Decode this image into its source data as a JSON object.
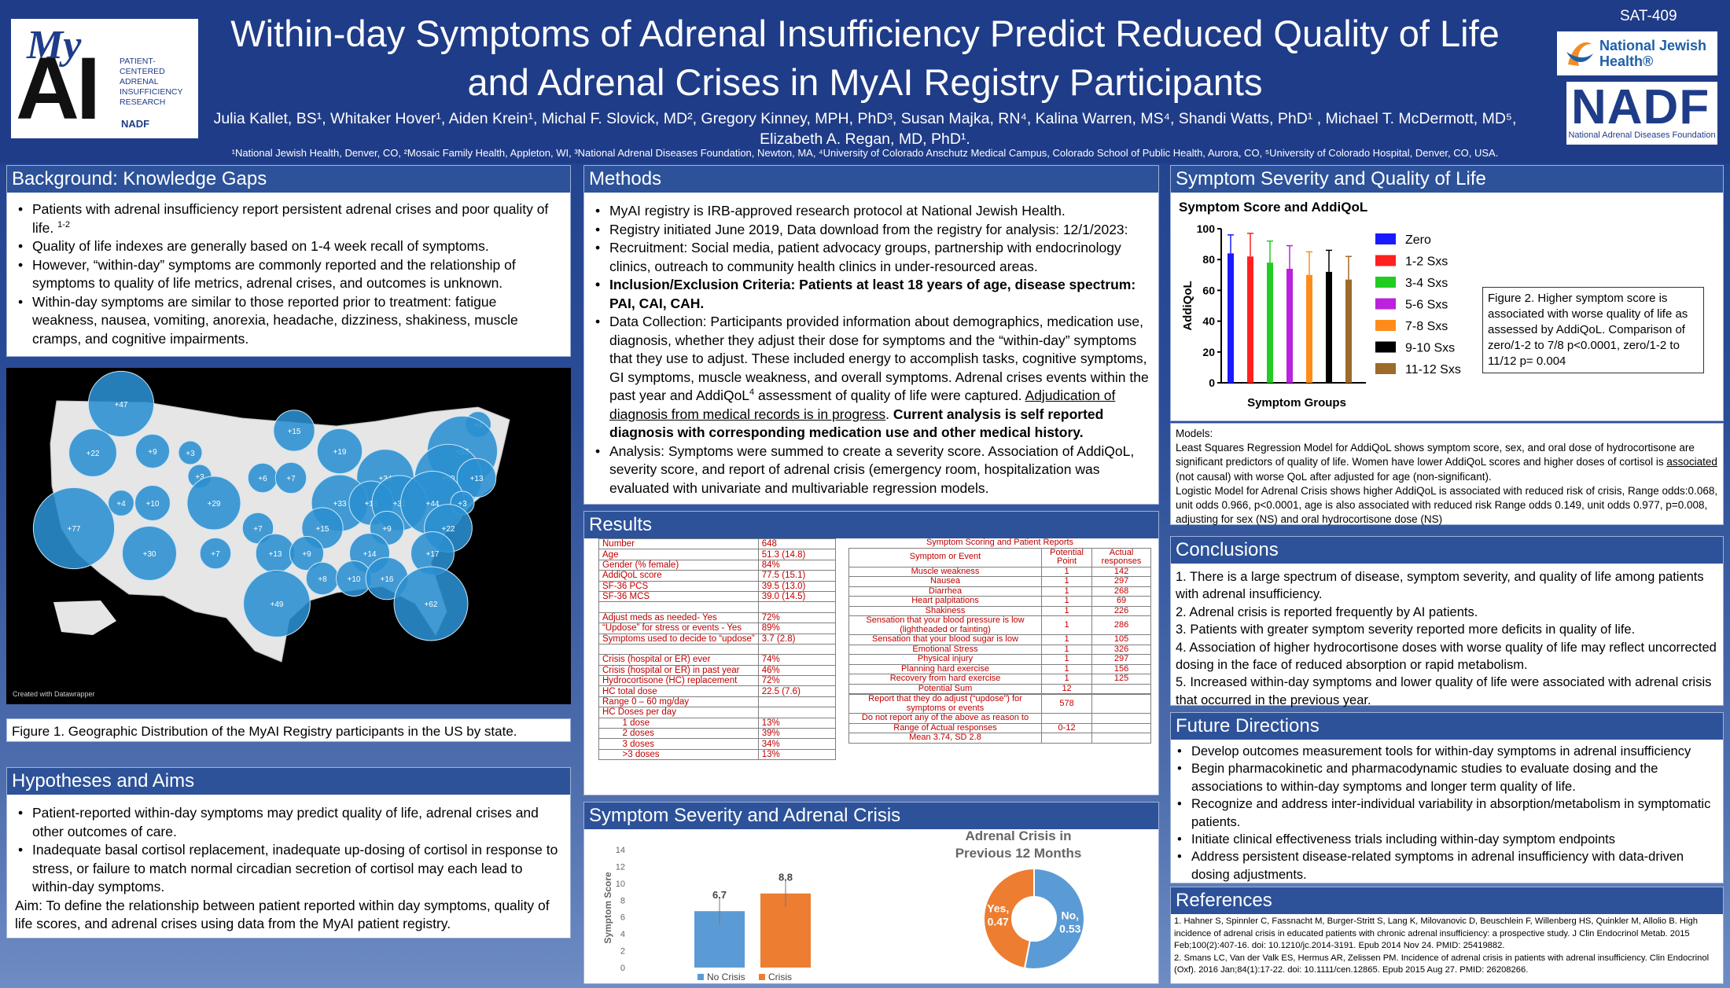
{
  "header": {
    "title": "Within-day Symptoms of Adrenal Insufficiency Predict Reduced Quality of Life and Adrenal Crises in MyAI Registry Participants",
    "authors": "Julia Kallet, BS¹, Whitaker Hover¹, Aiden Krein¹, Michal F. Slovick, MD², Gregory Kinney, MPH, PhD³, Susan Majka, RN⁴, Kalina Warren, MS⁴, Shandi Watts, PhD¹ , Michael T. McDermott, MD⁵, Elizabeth A. Regan, MD, PhD¹.",
    "affiliations": "¹National Jewish Health, Denver, CO, ²Mosaic Family Health, Appleton, WI, ³National Adrenal Diseases Foundation, Newton, MA, ⁴University of Colorado Anschutz Medical Campus, Colorado School of Public Health, Aurora, CO, ⁵University of Colorado Hospital, Denver, CO, USA.",
    "code": "SAT-409",
    "logo_myai": {
      "my": "My",
      "ai": "AI",
      "text": [
        "PATIENT-",
        "CENTERED",
        "ADRENAL",
        "INSUFFICIENCY",
        "RESEARCH"
      ],
      "nadf": "NADF"
    },
    "logo_njh": [
      "National Jewish",
      "Health®"
    ],
    "logo_nadf": {
      "big": "NADF",
      "small": "National Adrenal Diseases Foundation"
    }
  },
  "background": {
    "title": "Background: Knowledge Gaps",
    "b1": "Patients with adrenal insufficiency report persistent adrenal crises and poor quality of life.",
    "b1sup": "1-2",
    "b2": "Quality of life indexes are generally based on 1-4 week recall of symptoms.",
    "b3": "However, “within-day” symptoms are commonly reported and the relationship of symptoms to quality of life metrics, adrenal crises, and outcomes is unknown.",
    "b4": "Within-day symptoms are similar to those reported prior to treatment: fatigue weakness, nausea, vomiting, anorexia, headache, dizziness, shakiness, muscle cramps, and cognitive impairments."
  },
  "map": {
    "credit": "Created with Datawrapper",
    "caption": "Figure 1. Geographic Distribution of the MyAI Registry participants in the US by state.",
    "bubbles": [
      {
        "label": "+47",
        "value": 47
      },
      {
        "label": "+22",
        "value": 22
      },
      {
        "label": "+9",
        "value": 9
      },
      {
        "label": "+15",
        "value": 15
      },
      {
        "label": "+3",
        "value": 3
      },
      {
        "label": "+19",
        "value": 19
      },
      {
        "label": "+4",
        "value": 4
      },
      {
        "label": "+55",
        "value": 55
      },
      {
        "label": "+3",
        "value": 3
      },
      {
        "label": "+6",
        "value": 6
      },
      {
        "label": "+7",
        "value": 7
      },
      {
        "label": "+34",
        "value": 34
      },
      {
        "label": "+50",
        "value": 50
      },
      {
        "label": "+13",
        "value": 13
      },
      {
        "label": "+4",
        "value": 4
      },
      {
        "label": "+10",
        "value": 10
      },
      {
        "label": "+29",
        "value": 29
      },
      {
        "label": "+33",
        "value": 33
      },
      {
        "label": "+18",
        "value": 18
      },
      {
        "label": "+31",
        "value": 31
      },
      {
        "label": "+44",
        "value": 44
      },
      {
        "label": "+3",
        "value": 3
      },
      {
        "label": "+77",
        "value": 77
      },
      {
        "label": "+7",
        "value": 7
      },
      {
        "label": "+15",
        "value": 15
      },
      {
        "label": "+9",
        "value": 9
      },
      {
        "label": "+22",
        "value": 22
      },
      {
        "label": "+30",
        "value": 30
      },
      {
        "label": "+7",
        "value": 7
      },
      {
        "label": "+13",
        "value": 13
      },
      {
        "label": "+9",
        "value": 9
      },
      {
        "label": "+14",
        "value": 14
      },
      {
        "label": "+17",
        "value": 17
      },
      {
        "label": "+8",
        "value": 8
      },
      {
        "label": "+10",
        "value": 10
      },
      {
        "label": "+16",
        "value": 16
      },
      {
        "label": "+49",
        "value": 49
      },
      {
        "label": "+62",
        "value": 62
      }
    ]
  },
  "hypotheses": {
    "title": "Hypotheses and Aims",
    "b1": "Patient-reported within-day symptoms may predict quality of life, adrenal crises and other outcomes of care.",
    "b2": "Inadequate basal cortisol replacement, inadequate up-dosing of cortisol in response to stress, or failure to match normal circadian secretion of cortisol may each lead to within-day symptoms.",
    "aim": "Aim: To define the relationship between patient reported within day symptoms, quality of life scores, and adrenal crises using data from the MyAI patient registry."
  },
  "methods": {
    "title": "Methods",
    "b1": "MyAI registry is IRB-approved research protocol at National Jewish Health.",
    "b2": "Registry initiated June 2019, Data download from the registry for analysis: 12/1/2023:",
    "b3": "Recruitment: Social media, patient advocacy groups, partnership with endocrinology clinics, outreach to community health clinics in under-resourced areas.",
    "b4": "Inclusion/Exclusion Criteria: Patients at least 18 years of age, disease spectrum: PAI, CAI, CAH.",
    "b5a": "Data Collection: Participants provided information about demographics, medication use, diagnosis, whether they adjust their dose for symptoms and the “within-day” symptoms that they use to adjust. These included energy to accomplish tasks, cognitive symptoms, GI symptoms, muscle weakness, and overall symptoms. Adrenal crises events within the past year and AddiQoL",
    "b5sup": "4",
    "b5b": " assessment of quality of life were captured.  ",
    "b5u": "Adjudication of diagnosis from  medical records is in progress",
    "b5c": ". ",
    "b5d": "Current analysis is self reported diagnosis with corresponding medication use and other medical history.",
    "b6": "Analysis: Symptoms were summed to create a severity score. Association of AddiQoL, severity score, and report of adrenal crisis (emergency room, hospitalization was evaluated with univariate and multivariable regression models."
  },
  "results": {
    "title": "Results",
    "demo": [
      [
        "Number",
        "648"
      ],
      [
        "Age",
        "51.3 (14.8)"
      ],
      [
        "Gender (% female)",
        "84%"
      ],
      [
        "AddiQoL score",
        "77.5 (15.1)"
      ],
      [
        "SF-36 PCS",
        "39.5 (13.0)"
      ],
      [
        "SF-36 MCS",
        "39.0 (14.5)"
      ],
      [
        "",
        ""
      ],
      [
        "Adjust meds as needed- Yes",
        "72%"
      ],
      [
        "“Updose” for stress or events - Yes",
        "89%"
      ],
      [
        "Symptoms used to decide to “updose”",
        "3.7 (2.8)"
      ],
      [
        "",
        ""
      ],
      [
        "Crisis (hospital or ER) ever",
        "74%"
      ],
      [
        "Crisis (hospital or ER) in past year",
        "46%"
      ],
      [
        "Hydrocortisone (HC) replacement",
        "72%"
      ],
      [
        "HC total dose",
        "22.5 (7.6)"
      ],
      [
        "Range 0 – 60 mg/day",
        ""
      ],
      [
        "HC Doses per day",
        ""
      ],
      [
        "        1 dose",
        "13%"
      ],
      [
        "        2 doses",
        "39%"
      ],
      [
        "        3 doses",
        "34%"
      ],
      [
        "        >3 doses",
        "13%"
      ]
    ],
    "sym_title": "Symptom Scoring and Patient Reports",
    "sym_head": [
      "Symptom or Event",
      "Potential Point",
      "Actual responses"
    ],
    "sym": [
      [
        "Muscle weakness",
        "1",
        "142"
      ],
      [
        "Nausea",
        "1",
        "297"
      ],
      [
        "Diarrhea",
        "1",
        "268"
      ],
      [
        "Heart palpitations",
        "1",
        "69"
      ],
      [
        "Shakiness",
        "1",
        "226"
      ],
      [
        "Sensation that your blood pressure is low (lightheaded or fainting)",
        "1",
        "286"
      ],
      [
        "Sensation that your blood sugar is low",
        "1",
        "105"
      ],
      [
        "Emotional Stress",
        "1",
        "326"
      ],
      [
        "Physical injury",
        "1",
        "297"
      ],
      [
        "Planning hard exercise",
        "1",
        "156"
      ],
      [
        "Recovery from hard exercise",
        "1",
        "125"
      ],
      [
        "Potential Sum",
        "12",
        ""
      ],
      [
        "",
        "",
        " "
      ],
      [
        "Report that they do adjust (“updose”) for symptoms or events",
        "578",
        ""
      ],
      [
        "Do not report any of the above as reason to",
        "",
        ""
      ],
      [
        "Range of Actual responses",
        "0-12",
        ""
      ],
      [
        "Mean 3.74, SD 2.8",
        "",
        ""
      ]
    ]
  },
  "sev_crisis": {
    "title": "Symptom Severity and Adrenal Crisis",
    "chart_data": [
      {
        "type": "bar",
        "categories": [
          "No Crisis",
          "Crisis"
        ],
        "values": [
          6.7,
          8.8
        ],
        "ylabel": "Symptom Score",
        "ylim": [
          0,
          14
        ],
        "yticks": [
          0,
          2,
          4,
          6,
          8,
          10,
          12,
          14
        ],
        "colors": [
          "#5b9bd5",
          "#ed7d31"
        ],
        "legend": [
          "No Crisis",
          "Crisis"
        ],
        "error_bars": true
      },
      {
        "type": "pie",
        "title": "Adrenal Crisis in Previous 12 Months",
        "categories": [
          "No",
          "Yes"
        ],
        "values": [
          0.53,
          0.47
        ],
        "labels": [
          "No,\n0.53",
          "Yes,\n0.47"
        ],
        "colors": [
          "#5b9bd5",
          "#ed7d31"
        ]
      }
    ]
  },
  "sev_qol": {
    "title": "Symptom Severity and Quality of Life",
    "chart_data": {
      "type": "bar",
      "title": "Symptom Score and AddiQoL",
      "xlabel": "Symptom Groups",
      "ylabel": "AddiQoL",
      "ylim": [
        0,
        100
      ],
      "yticks": [
        0,
        20,
        40,
        60,
        80,
        100
      ],
      "categories": [
        "Zero",
        "1-2 Sxs",
        "3-4 Sxs",
        "5-6 Sxs",
        "7-8 Sxs",
        "9-10 Sxs",
        "11-12 Sxs"
      ],
      "values": [
        84,
        82,
        78,
        74,
        70,
        72,
        67
      ],
      "errors": [
        12,
        15,
        14,
        15,
        15,
        14,
        15
      ],
      "colors": [
        "#1a1aff",
        "#ff2020",
        "#22cc22",
        "#bb22dd",
        "#ff8c1a",
        "#000000",
        "#9c6a2a"
      ]
    },
    "figure2": "Figure 2. Higher symptom score is associated with worse quality of life as assessed by AddiQoL.  Comparison of zero/1-2 to 7/8 p<0.0001, zero/1-2 to 11/12 p= 0.004",
    "models_a": "Models:",
    "models_b": "Least Squares Regression Model for AddiQoL shows symptom score, sex, and oral dose of hydrocortisone are significant predictors of quality of life.  Women have lower AddiQoL scores and higher doses of cortisol is ",
    "models_u": "associated",
    "models_c": " (not causal) with worse QoL after adjusted for age (non-significant).",
    "models_d": "Logistic Model for Adrenal Crisis shows higher AddiQoL is associated with reduced risk of crisis, Range odds:0.068, unit odds 0.966,  p<0.0001, age is also associated with reduced risk Range odds 0.149, unit odds 0.977, p=0.008, adjusting for sex (NS) and oral hydrocortisone dose (NS)"
  },
  "conclusions": {
    "title": "Conclusions",
    "items": [
      "1. There is a large spectrum of disease, symptom severity, and quality of life among patients with adrenal insufficiency.",
      "2. Adrenal crisis is reported frequently by AI patients.",
      "3. Patients with greater symptom severity reported more deficits in quality of life.",
      "4. Association of higher hydrocortisone doses with worse quality of life may reflect uncorrected dosing in the face of reduced absorption or rapid metabolism.",
      "5. Increased within-day symptoms and lower quality of life were associated with adrenal crisis that occurred in the previous year."
    ]
  },
  "future": {
    "title": "Future Directions",
    "items": [
      "Develop outcomes measurement tools for within-day symptoms in adrenal insufficiency",
      "Begin pharmacokinetic and pharmacodynamic studies to evaluate dosing and the associations to within-day symptoms and longer term quality of life.",
      "Recognize and address inter-individual variability in absorption/metabolism in symptomatic patients.",
      "Initiate clinical effectiveness trials including within-day symptom endpoints",
      "Address persistent disease-related symptoms in adrenal insufficiency with data-driven dosing adjustments."
    ]
  },
  "references": {
    "title": "References",
    "r1": "1. Hahner S, Spinnler C, Fassnacht M, Burger-Stritt S, Lang K, Milovanovic D, Beuschlein F, Willenberg HS, Quinkler M, Allolio B. High incidence of adrenal crisis in educated patients with chronic adrenal insufficiency: a prospective study. J Clin Endocrinol Metab. 2015 Feb;100(2):407-16. doi: 10.1210/jc.2014-3191. Epub 2014 Nov 24. PMID: 25419882.",
    "r2": "2. Smans LC, Van der Valk ES, Hermus AR, Zelissen PM. Incidence of adrenal crisis in patients with adrenal insufficiency. Clin Endocrinol (Oxf). 2016 Jan;84(1):17-22. doi: 10.1111/cen.12865. Epub 2015 Aug 27. PMID: 26208266."
  }
}
